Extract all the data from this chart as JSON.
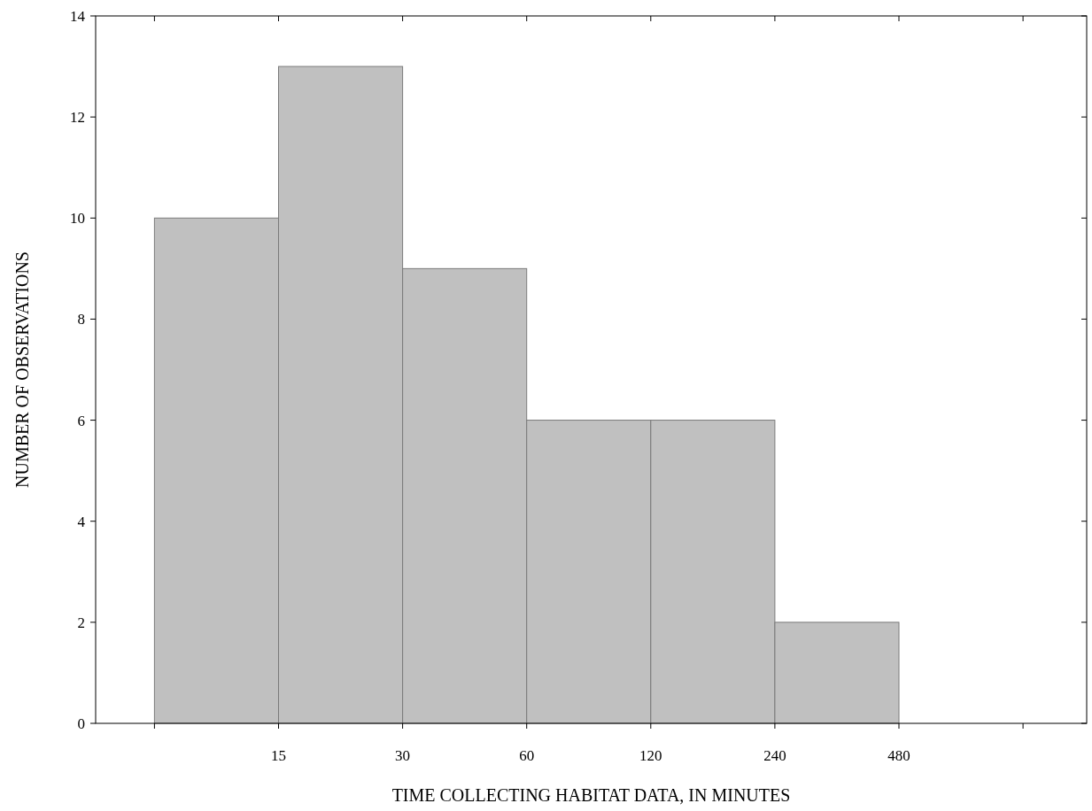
{
  "chart_data": {
    "type": "histogram",
    "xlabel": "TIME COLLECTING HABITAT DATA, IN MINUTES",
    "ylabel": "NUMBER OF OBSERVATIONS",
    "bins": [
      7.5,
      15,
      30,
      60,
      120,
      240,
      480
    ],
    "values": [
      10,
      13,
      9,
      6,
      6,
      2
    ],
    "color": "#c0c0c0",
    "log": "x",
    "xlim": [
      5.4,
      1370
    ],
    "xticks": [
      {
        "value": 7.5,
        "label": null
      },
      15,
      30,
      60,
      120,
      240,
      480,
      {
        "value": 960,
        "label": null
      }
    ],
    "ylim": [
      0,
      14
    ],
    "yticks": [
      0,
      2,
      4,
      6,
      8,
      10,
      12,
      14
    ],
    "grid": false,
    "legend": false
  }
}
